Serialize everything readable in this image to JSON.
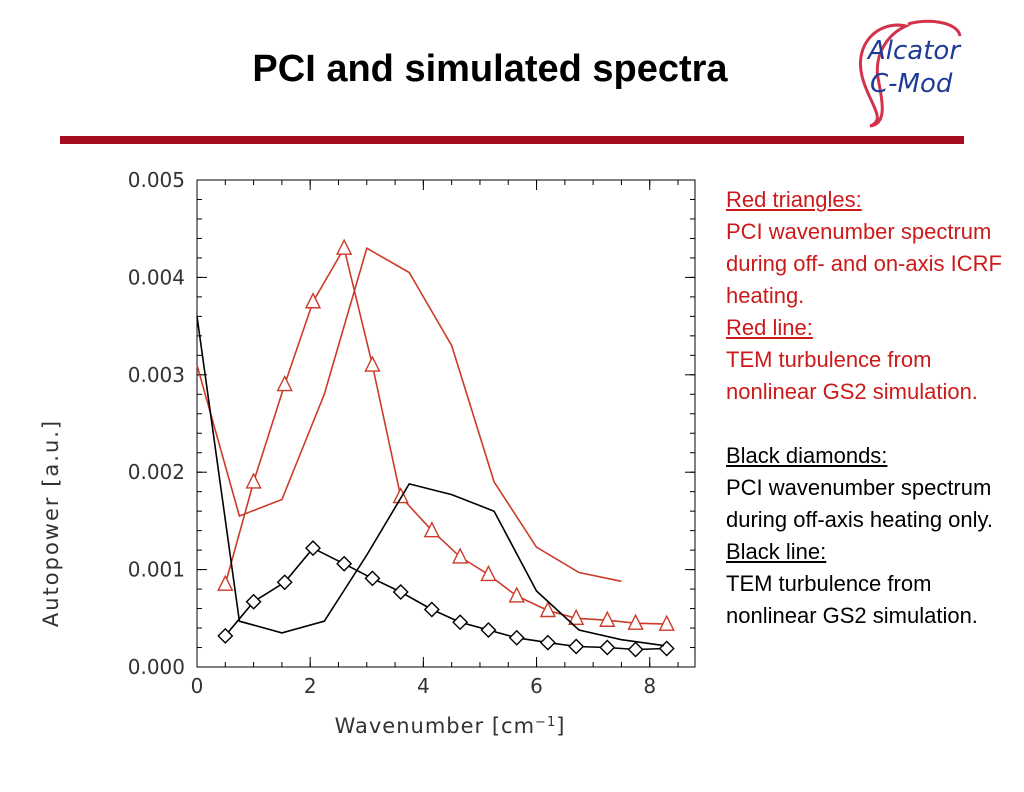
{
  "slide": {
    "title": "PCI and simulated spectra",
    "logo_text_line1": "Alcator",
    "logo_text_line2": "C-Mod",
    "accent_color": "#a30d1f"
  },
  "legend": {
    "red_triangles_heading": "Red triangles:",
    "red_triangles_text": "PCI wavenumber spectrum during off- and on-axis ICRF heating.",
    "red_line_heading": "Red line:",
    "red_line_text": "TEM turbulence from nonlinear GS2 simulation.",
    "black_diamonds_heading": "Black diamonds:",
    "black_diamonds_text": "PCI wavenumber spectrum during off-axis heating only.",
    "black_line_heading": "Black line:",
    "black_line_text": "TEM turbulence from nonlinear GS2 simulation.",
    "red_color": "#cc1a1a",
    "black_color": "#000000"
  },
  "chart_data": {
    "type": "line",
    "xlabel": "Wavenumber [cm",
    "xlabel_sup": "−1",
    "xlabel_end": "]",
    "ylabel": "Autopower [a.u.]",
    "xlim": [
      0,
      8.8
    ],
    "ylim": [
      0,
      0.005
    ],
    "xticks": [
      0,
      2,
      4,
      6,
      8
    ],
    "xtick_labels": [
      "0",
      "2",
      "4",
      "6",
      "8"
    ],
    "yticks": [
      0,
      0.001,
      0.002,
      0.003,
      0.004,
      0.005
    ],
    "ytick_labels": [
      "0.000",
      "0.001",
      "0.002",
      "0.003",
      "0.004",
      "0.005"
    ],
    "series": [
      {
        "marker": "triangle",
        "color": "#cc3b2a",
        "x": [
          0.5,
          1.0,
          1.55,
          2.05,
          2.6,
          3.1,
          3.6,
          4.15,
          4.65,
          5.15,
          5.65,
          6.2,
          6.7,
          7.25,
          7.75,
          8.3
        ],
        "y": [
          0.00085,
          0.0019,
          0.0029,
          0.00375,
          0.0043,
          0.0031,
          0.00175,
          0.0014,
          0.00113,
          0.00095,
          0.00073,
          0.00058,
          0.0005,
          0.00048,
          0.00045,
          0.00044
        ]
      },
      {
        "marker": "none",
        "color": "#cc3b2a",
        "x": [
          0,
          0.75,
          1.5,
          2.25,
          3.0,
          3.75,
          4.5,
          5.25,
          6.0,
          6.75,
          7.5
        ],
        "y": [
          0.0031,
          0.00155,
          0.00172,
          0.0028,
          0.0043,
          0.00405,
          0.0033,
          0.0019,
          0.00123,
          0.00097,
          0.00088
        ]
      },
      {
        "marker": "diamond",
        "color": "#000000",
        "x": [
          0.5,
          1.0,
          1.55,
          2.05,
          2.6,
          3.1,
          3.6,
          4.15,
          4.65,
          5.15,
          5.65,
          6.2,
          6.7,
          7.25,
          7.75,
          8.3
        ],
        "y": [
          0.00032,
          0.00067,
          0.00087,
          0.00122,
          0.00106,
          0.00091,
          0.00077,
          0.00059,
          0.00046,
          0.00038,
          0.0003,
          0.00025,
          0.00021,
          0.0002,
          0.00018,
          0.00019
        ]
      },
      {
        "marker": "none",
        "color": "#000000",
        "x": [
          0,
          0.75,
          1.5,
          2.25,
          3.0,
          3.75,
          4.5,
          5.25,
          6.0,
          6.75,
          7.5,
          8.25
        ],
        "y": [
          0.0036,
          0.00047,
          0.00035,
          0.00047,
          0.00115,
          0.00188,
          0.00177,
          0.0016,
          0.00078,
          0.00038,
          0.00028,
          0.00022
        ]
      }
    ]
  }
}
